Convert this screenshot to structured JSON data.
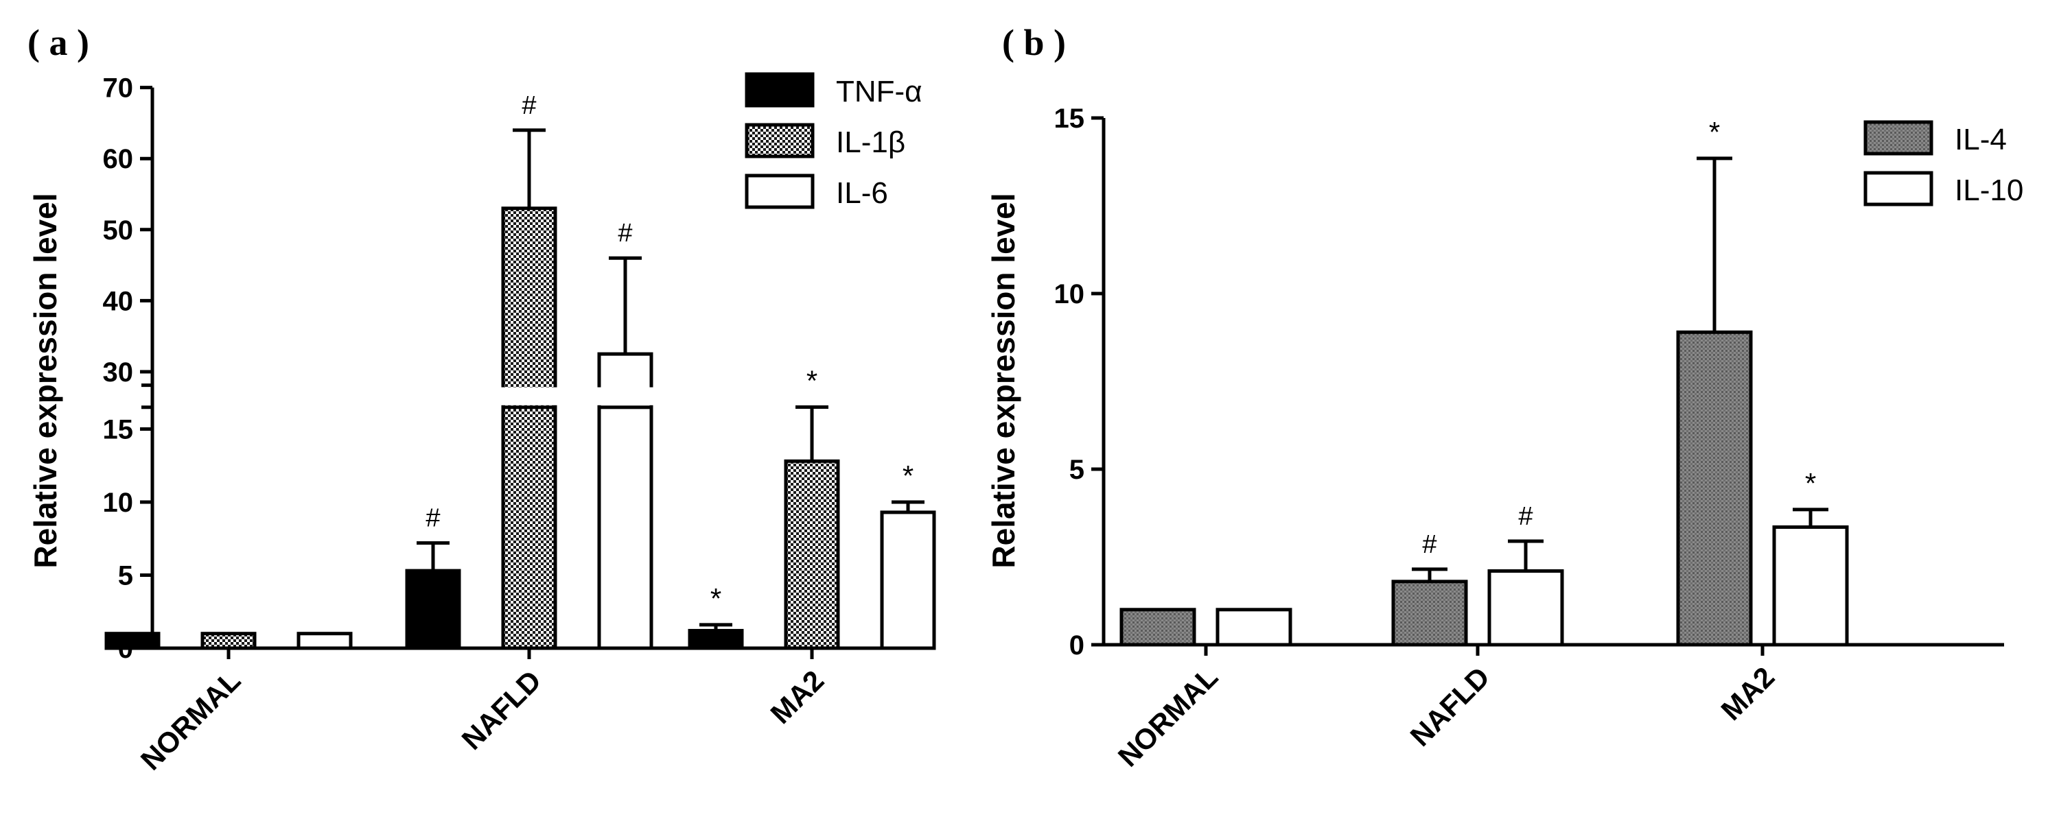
{
  "panels": [
    {
      "label": "( a )"
    },
    {
      "label": "( b )"
    }
  ],
  "chart_data": [
    {
      "type": "bar",
      "panel": "(a)",
      "title": "",
      "xlabel": "",
      "ylabel": "Relative expression level",
      "categories": [
        "NORMAL",
        "NAFLD",
        "MA2"
      ],
      "series": [
        {
          "name": "TNF-α",
          "values": [
            1.0,
            5.3,
            1.2
          ],
          "errors": [
            0.0,
            1.9,
            0.4
          ],
          "significance": [
            "",
            "#",
            "*"
          ],
          "fill": "solid-black"
        },
        {
          "name": "IL-1β",
          "values": [
            1.0,
            53.0,
            12.8
          ],
          "errors": [
            0.0,
            11.0,
            3.7
          ],
          "significance": [
            "",
            "#",
            "*"
          ],
          "fill": "checkered"
        },
        {
          "name": "IL-6",
          "values": [
            1.0,
            32.5,
            9.3
          ],
          "errors": [
            0.0,
            13.5,
            0.7
          ],
          "significance": [
            "",
            "#",
            "*"
          ],
          "fill": "white"
        }
      ],
      "y_axis_break": {
        "lower_range": [
          0,
          18
        ],
        "upper_range": [
          25,
          70
        ]
      },
      "yticks_lower": [
        0,
        5,
        10,
        15
      ],
      "yticks_upper": [
        30,
        40,
        50,
        60,
        70
      ],
      "legend_position": "top-right",
      "grid": false
    },
    {
      "type": "bar",
      "panel": "(b)",
      "title": "",
      "xlabel": "",
      "ylabel": "Relative expression level",
      "categories": [
        "NORMAL",
        "NAFLD",
        "MA2"
      ],
      "series": [
        {
          "name": "IL-4",
          "values": [
            1.0,
            1.8,
            8.9
          ],
          "errors": [
            0.0,
            0.35,
            4.95
          ],
          "significance": [
            "",
            "#",
            "*"
          ],
          "fill": "gray-dotted"
        },
        {
          "name": "IL-10",
          "values": [
            1.0,
            2.1,
            3.35
          ],
          "errors": [
            0.0,
            0.85,
            0.5
          ],
          "significance": [
            "",
            "#",
            "*"
          ],
          "fill": "white"
        }
      ],
      "ylim": [
        0,
        15
      ],
      "yticks": [
        0,
        5,
        10,
        15
      ],
      "legend_position": "top-right",
      "grid": false
    }
  ]
}
